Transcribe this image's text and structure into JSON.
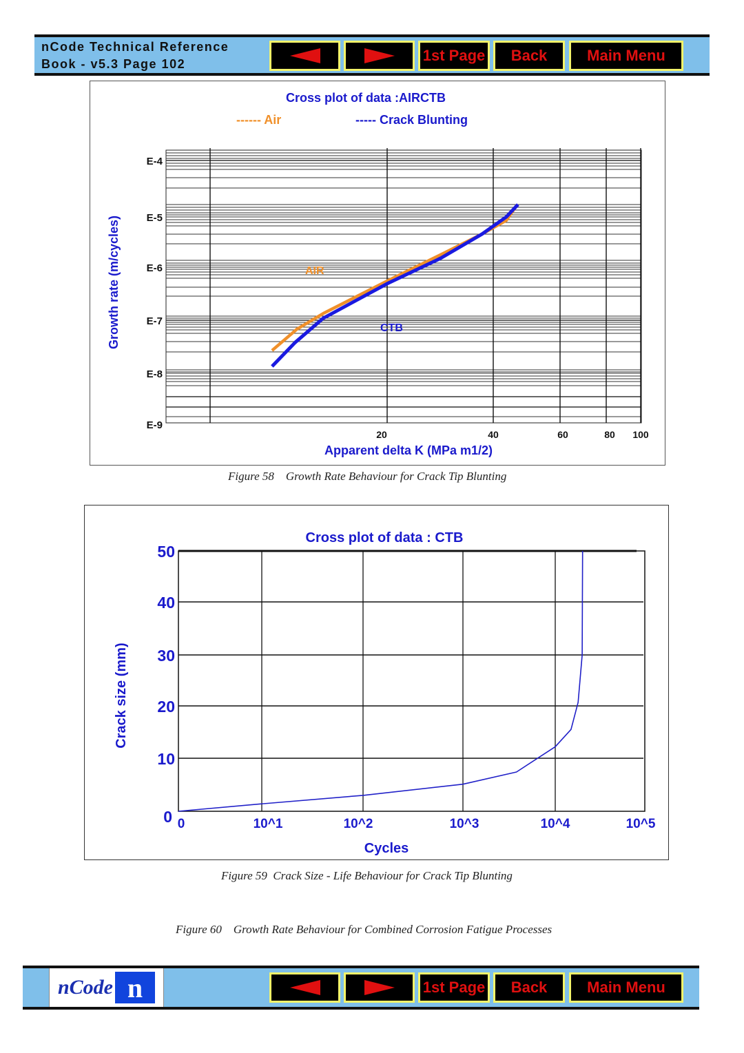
{
  "header": {
    "line1": "nCode Technical Reference",
    "line2": "Book - v5.3  Page 102"
  },
  "nav": {
    "prev": "previous-arrow",
    "next": "next-arrow",
    "first": "1st Page",
    "back": "Back",
    "menu": "Main Menu"
  },
  "footer": {
    "logo_text": "nCode",
    "logo_mark": "n"
  },
  "colors": {
    "nav_bg": "#000000",
    "nav_text": "#e01010",
    "nav_border": "#f4f46a",
    "bar": "#7fbfea",
    "chart_text": "#1a1acc",
    "air": "#f0902a",
    "ctb": "#1a1ae0"
  },
  "captions": {
    "fig58": "Figure 58    Growth Rate Behaviour for Crack Tip Blunting",
    "fig59": "Figure 59  Crack Size - Life Behaviour for Crack Tip Blunting",
    "fig60": "Figure 60    Growth Rate Behaviour for Combined Corrosion Fatigue Processes"
  },
  "chart_data": [
    {
      "type": "line",
      "title": "Cross plot of data :AIRCTB",
      "legend": [
        "------ Air",
        "----- Crack Blunting"
      ],
      "legend_placement": "top",
      "xlabel": "Apparent delta K (MPa m1/2)",
      "ylabel": "Growth rate (m/cycles)",
      "x_ticks": [
        "20",
        "40",
        "60",
        "80",
        "100"
      ],
      "y_ticks": [
        "E-4",
        "E-5",
        "E-6",
        "E-7",
        "E-8",
        "E-9"
      ],
      "annotations": [
        "AIR",
        "CTB"
      ],
      "grid": true,
      "series": [
        {
          "name": "Air",
          "x": [
            13.5,
            14.9,
            16.4,
            20,
            30.1,
            37.9,
            43.9,
            47.1
          ],
          "log10_y": [
            -7.57,
            -7.17,
            -6.87,
            -6.26,
            -5.75,
            -5.34,
            -5.07,
            -4.79
          ]
        },
        {
          "name": "Crack Blunting",
          "x": [
            13.5,
            14.8,
            16.4,
            20,
            30.1,
            37.9,
            43.9,
            47.4
          ],
          "log10_y": [
            -7.87,
            -7.42,
            -6.96,
            -6.31,
            -5.82,
            -5.34,
            -5.0,
            -4.78
          ]
        }
      ]
    },
    {
      "type": "line",
      "title": "Cross plot of data : CTB",
      "xlabel": "Cycles",
      "ylabel": "Crack size (mm)",
      "x_ticks": [
        "0",
        "10^1",
        "10^2",
        "10^3",
        "10^4",
        "10^5"
      ],
      "y_ticks": [
        "0",
        "10",
        "20",
        "30",
        "40",
        "50"
      ],
      "ylim": [
        0,
        50
      ],
      "grid": true,
      "series": [
        {
          "name": "CTB",
          "x": [
            1,
            10,
            100,
            1000,
            3800,
            10000,
            15000,
            18000,
            20000,
            20200
          ],
          "y": [
            0,
            1.4,
            3,
            5.1,
            7.4,
            12.2,
            15.5,
            20.7,
            30,
            50
          ]
        }
      ]
    }
  ]
}
